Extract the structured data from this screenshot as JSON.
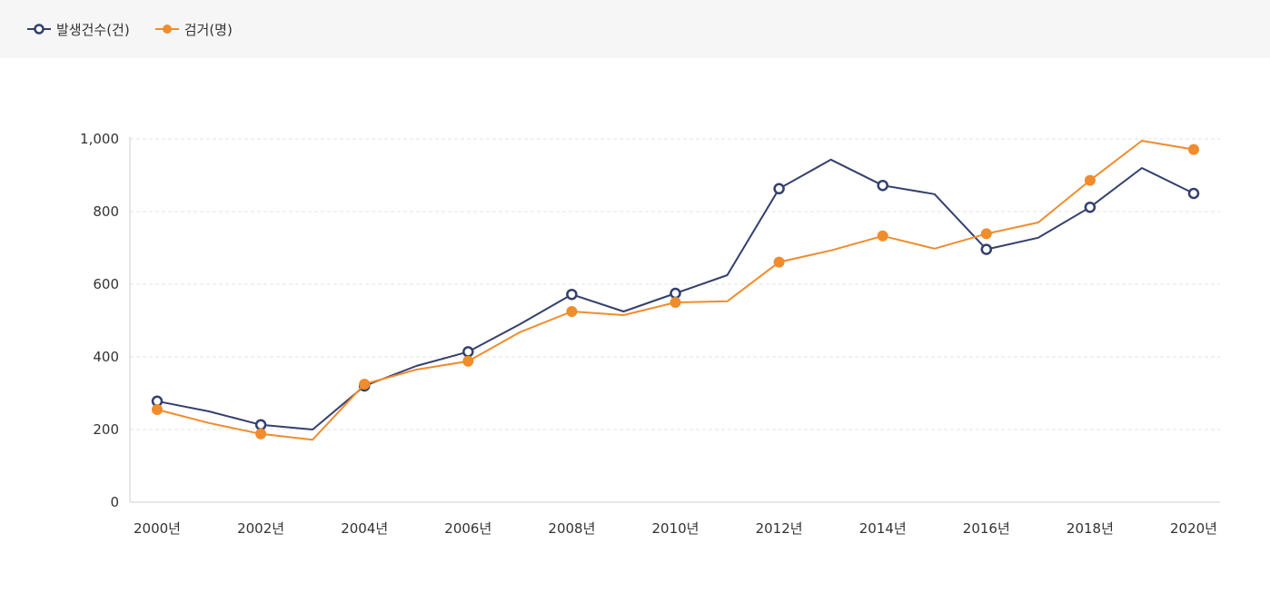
{
  "legend": {
    "series1_label": "발생건수(건)",
    "series2_label": "검거(명)"
  },
  "chart_data": {
    "type": "line",
    "title": "",
    "xlabel": "",
    "ylabel": "",
    "ylim": [
      0,
      1000
    ],
    "y_ticks": [
      "0",
      "200",
      "400",
      "600",
      "800",
      "1,000"
    ],
    "y_tick_values": [
      0,
      200,
      400,
      600,
      800,
      1000
    ],
    "x": [
      2000,
      2001,
      2002,
      2003,
      2004,
      2005,
      2006,
      2007,
      2008,
      2009,
      2010,
      2011,
      2012,
      2013,
      2014,
      2015,
      2016,
      2017,
      2018,
      2019,
      2020
    ],
    "x_tick_labels": [
      "2000년",
      "2002년",
      "2004년",
      "2006년",
      "2008년",
      "2010년",
      "2012년",
      "2014년",
      "2016년",
      "2018년",
      "2020년"
    ],
    "x_tick_years": [
      2000,
      2002,
      2004,
      2006,
      2008,
      2010,
      2012,
      2014,
      2016,
      2018,
      2020
    ],
    "grid": true,
    "legend_position": "top-left",
    "series": [
      {
        "name": "발생건수(건)",
        "color": "#34406d",
        "marker": "hollow-circle",
        "values": [
          278,
          250,
          213,
          200,
          320,
          375,
          414,
          490,
          572,
          525,
          575,
          625,
          863,
          943,
          872,
          848,
          696,
          728,
          812,
          920,
          850
        ]
      },
      {
        "name": "검거(명)",
        "color": "#f08c2c",
        "marker": "filled-circle",
        "values": [
          255,
          218,
          188,
          172,
          325,
          365,
          388,
          468,
          525,
          515,
          550,
          553,
          661,
          693,
          733,
          698,
          739,
          770,
          886,
          995,
          971
        ]
      }
    ]
  }
}
